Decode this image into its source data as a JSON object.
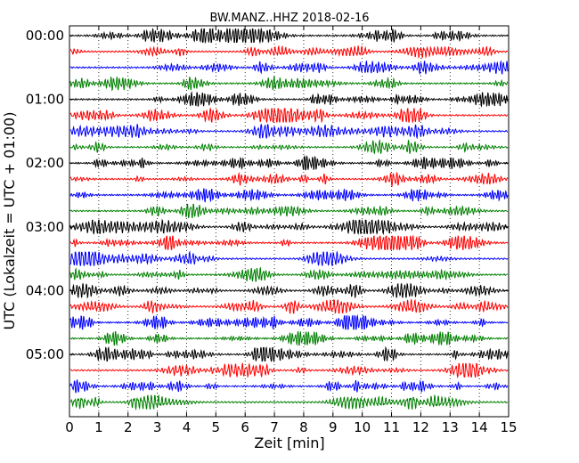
{
  "chart_data": {
    "type": "line",
    "title": "BW.MANZ..HHZ 2018-02-16",
    "xlabel": "Zeit  [min]",
    "ylabel": "UTC (Lokalzeit = UTC + 01:00)",
    "xlim": [
      0,
      15
    ],
    "x_ticks": [
      0,
      1,
      2,
      3,
      4,
      5,
      6,
      7,
      8,
      9,
      10,
      11,
      12,
      13,
      14,
      15
    ],
    "x_tick_labels": [
      "0",
      "1",
      "2",
      "3",
      "4",
      "5",
      "6",
      "7",
      "8",
      "9",
      "10",
      "11",
      "12",
      "13",
      "14",
      "15"
    ],
    "y_tick_labels": [
      "00:00",
      "01:00",
      "02:00",
      "03:00",
      "04:00",
      "05:00"
    ],
    "vertical_grid": "dotted",
    "trace_colors": [
      "#000000",
      "#ff0000",
      "#0000ff",
      "#008000"
    ],
    "rows": 24
  }
}
